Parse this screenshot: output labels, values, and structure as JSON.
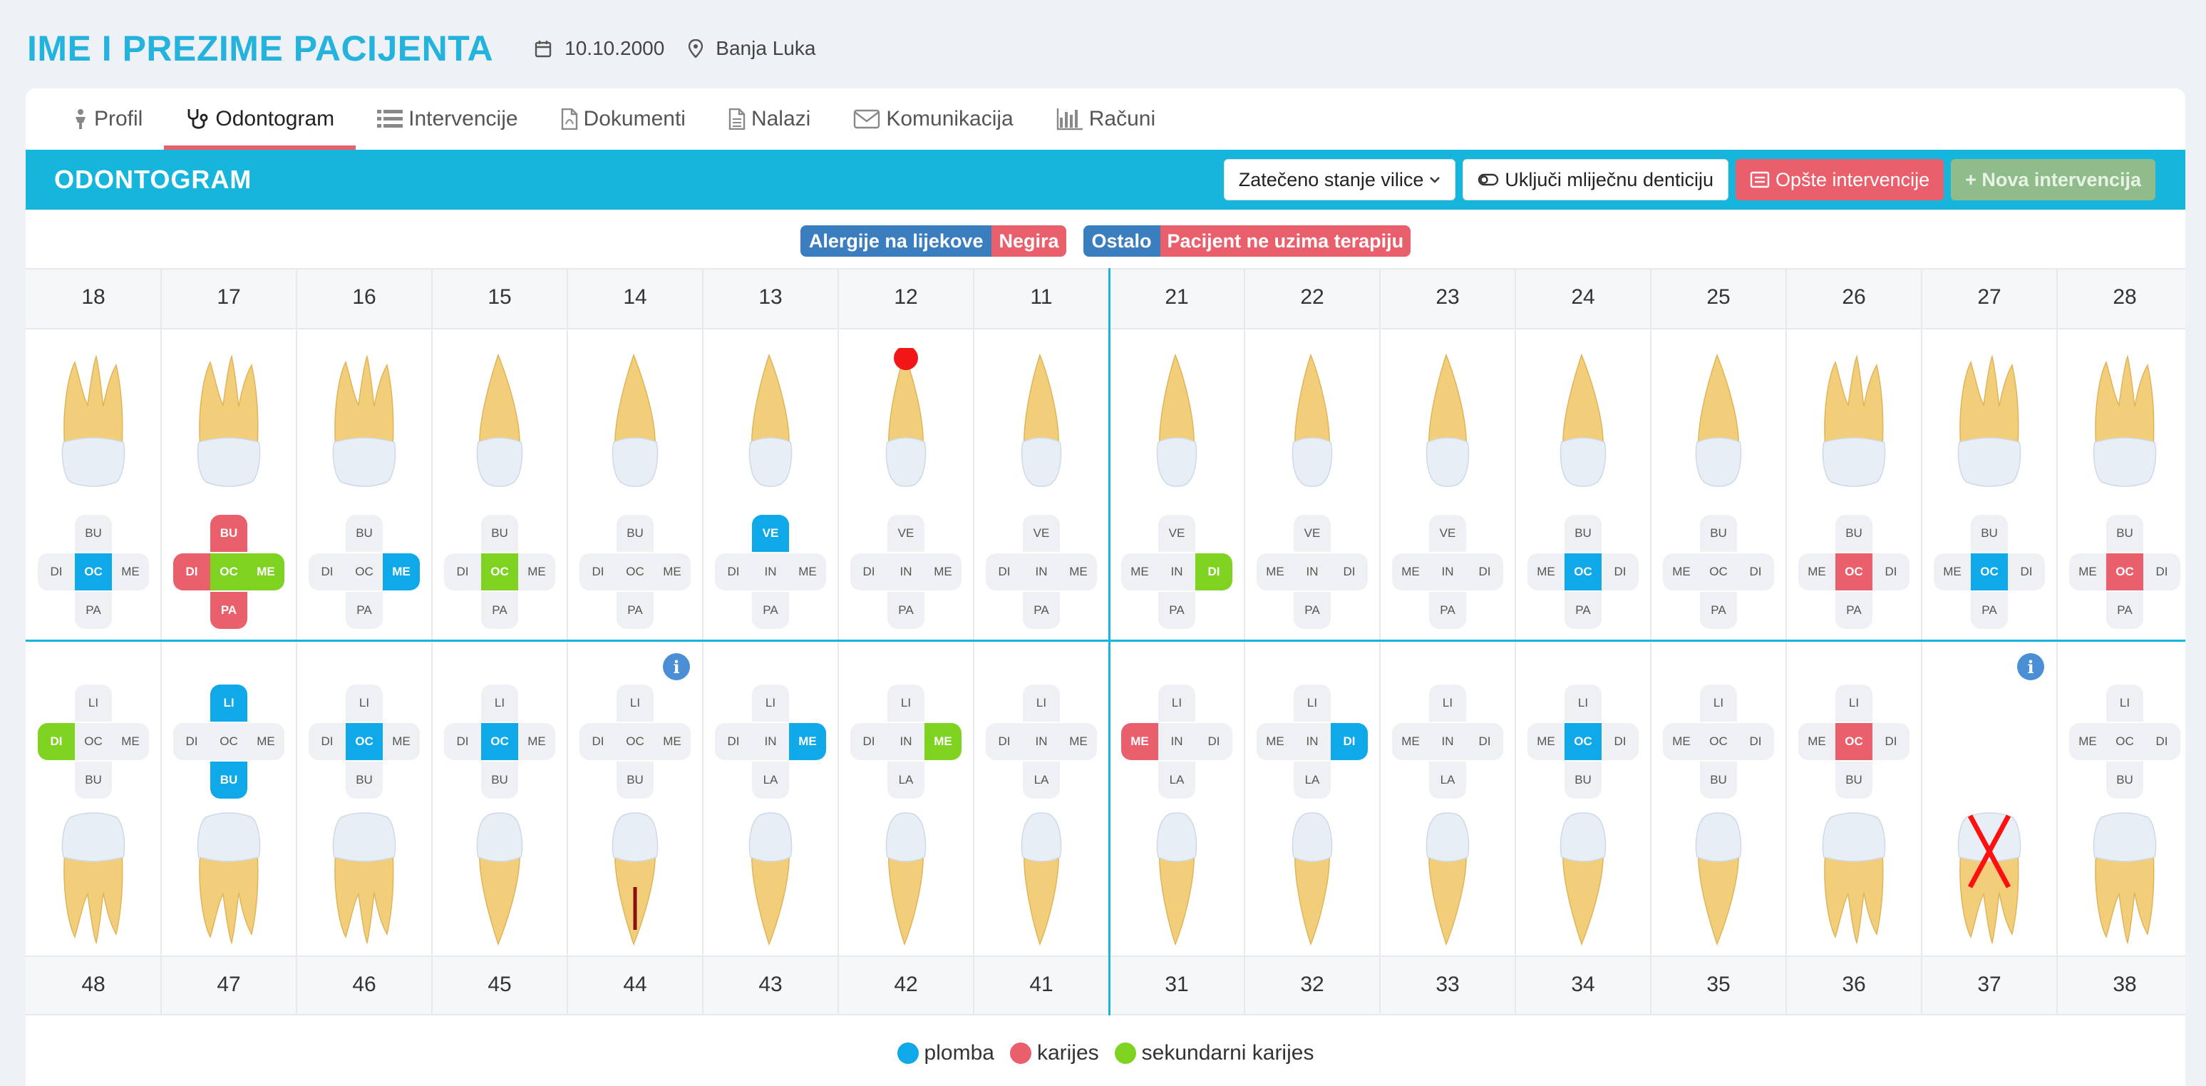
{
  "patient": {
    "name": "IME I PREZIME PACIJENTA",
    "dob": "10.10.2000",
    "city": "Banja Luka"
  },
  "tabs": [
    {
      "label": "Profil",
      "icon": "person-icon"
    },
    {
      "label": "Odontogram",
      "icon": "stethoscope-icon",
      "active": true
    },
    {
      "label": "Intervencije",
      "icon": "list-icon"
    },
    {
      "label": "Dokumenti",
      "icon": "pdf-file-icon"
    },
    {
      "label": "Nalazi",
      "icon": "document-icon"
    },
    {
      "label": "Komunikacija",
      "icon": "envelope-icon"
    },
    {
      "label": "Računi",
      "icon": "bar-chart-icon"
    }
  ],
  "toolbar": {
    "title": "ODONTOGRAM",
    "state_select": "Zatečeno stanje vilice",
    "milk_toggle": "Uključi mliječnu denticiju",
    "general_btn": "Opšte intervencije",
    "new_btn": "+ Nova intervencija"
  },
  "badges": {
    "allergy_label": "Alergije na lijekove",
    "allergy_value": "Negira",
    "other_label": "Ostalo",
    "other_value": "Pacijent ne uzima terapiju"
  },
  "colors": {
    "accent": "#16b6dc",
    "plomba": "#0fa8e8",
    "karijes": "#e9606c",
    "sekundarni": "#7ed321"
  },
  "upper": [
    {
      "num": "18",
      "kind": "molar",
      "s": [
        "BU",
        "DI",
        "OC",
        "ME",
        "PA"
      ],
      "c": [
        "",
        "",
        "blue",
        "",
        ""
      ]
    },
    {
      "num": "17",
      "kind": "molar",
      "s": [
        "BU",
        "DI",
        "OC",
        "ME",
        "PA"
      ],
      "c": [
        "red",
        "red",
        "green",
        "green",
        "red"
      ]
    },
    {
      "num": "16",
      "kind": "molar",
      "s": [
        "BU",
        "DI",
        "OC",
        "ME",
        "PA"
      ],
      "c": [
        "",
        "",
        "",
        "blue",
        ""
      ]
    },
    {
      "num": "15",
      "kind": "premolar",
      "s": [
        "BU",
        "DI",
        "OC",
        "ME",
        "PA"
      ],
      "c": [
        "",
        "",
        "green",
        "",
        ""
      ]
    },
    {
      "num": "14",
      "kind": "premolar",
      "s": [
        "BU",
        "DI",
        "OC",
        "ME",
        "PA"
      ],
      "c": [
        "",
        "",
        "",
        "",
        ""
      ]
    },
    {
      "num": "13",
      "kind": "canine",
      "s": [
        "VE",
        "DI",
        "IN",
        "ME",
        "PA"
      ],
      "c": [
        "blue",
        "",
        "",
        "",
        ""
      ]
    },
    {
      "num": "12",
      "kind": "incisor",
      "s": [
        "VE",
        "DI",
        "IN",
        "ME",
        "PA"
      ],
      "c": [
        "",
        "",
        "",
        "",
        ""
      ],
      "marker": true
    },
    {
      "num": "11",
      "kind": "incisor",
      "s": [
        "VE",
        "DI",
        "IN",
        "ME",
        "PA"
      ],
      "c": [
        "",
        "",
        "",
        "",
        ""
      ]
    },
    {
      "num": "21",
      "kind": "incisor",
      "s": [
        "VE",
        "ME",
        "IN",
        "DI",
        "PA"
      ],
      "c": [
        "",
        "",
        "",
        "green",
        ""
      ]
    },
    {
      "num": "22",
      "kind": "incisor",
      "s": [
        "VE",
        "ME",
        "IN",
        "DI",
        "PA"
      ],
      "c": [
        "",
        "",
        "",
        "",
        ""
      ]
    },
    {
      "num": "23",
      "kind": "canine",
      "s": [
        "VE",
        "ME",
        "IN",
        "DI",
        "PA"
      ],
      "c": [
        "",
        "",
        "",
        "",
        ""
      ]
    },
    {
      "num": "24",
      "kind": "premolar",
      "s": [
        "BU",
        "ME",
        "OC",
        "DI",
        "PA"
      ],
      "c": [
        "",
        "",
        "blue",
        "",
        ""
      ]
    },
    {
      "num": "25",
      "kind": "premolar",
      "s": [
        "BU",
        "ME",
        "OC",
        "DI",
        "PA"
      ],
      "c": [
        "",
        "",
        "",
        "",
        ""
      ]
    },
    {
      "num": "26",
      "kind": "molar",
      "s": [
        "BU",
        "ME",
        "OC",
        "DI",
        "PA"
      ],
      "c": [
        "",
        "",
        "red",
        "",
        ""
      ]
    },
    {
      "num": "27",
      "kind": "molar",
      "s": [
        "BU",
        "ME",
        "OC",
        "DI",
        "PA"
      ],
      "c": [
        "",
        "",
        "blue",
        "",
        ""
      ]
    },
    {
      "num": "28",
      "kind": "molar",
      "s": [
        "BU",
        "ME",
        "OC",
        "DI",
        "PA"
      ],
      "c": [
        "",
        "",
        "red",
        "",
        ""
      ]
    }
  ],
  "lower": [
    {
      "num": "48",
      "kind": "molar",
      "s": [
        "LI",
        "DI",
        "OC",
        "ME",
        "BU"
      ],
      "c": [
        "",
        "green",
        "",
        "",
        ""
      ]
    },
    {
      "num": "47",
      "kind": "molar",
      "s": [
        "LI",
        "DI",
        "OC",
        "ME",
        "BU"
      ],
      "c": [
        "blue",
        "",
        "",
        "",
        "blue"
      ]
    },
    {
      "num": "46",
      "kind": "molar",
      "s": [
        "LI",
        "DI",
        "OC",
        "ME",
        "BU"
      ],
      "c": [
        "",
        "",
        "blue",
        "",
        ""
      ]
    },
    {
      "num": "45",
      "kind": "premolar",
      "s": [
        "LI",
        "DI",
        "OC",
        "ME",
        "BU"
      ],
      "c": [
        "",
        "",
        "blue",
        "",
        ""
      ]
    },
    {
      "num": "44",
      "kind": "premolar",
      "s": [
        "LI",
        "DI",
        "OC",
        "ME",
        "BU"
      ],
      "c": [
        "",
        "",
        "",
        "",
        ""
      ],
      "info": true,
      "rootcanal": true
    },
    {
      "num": "43",
      "kind": "canine",
      "s": [
        "LI",
        "DI",
        "IN",
        "ME",
        "LA"
      ],
      "c": [
        "",
        "",
        "",
        "blue",
        ""
      ]
    },
    {
      "num": "42",
      "kind": "incisor",
      "s": [
        "LI",
        "DI",
        "IN",
        "ME",
        "LA"
      ],
      "c": [
        "",
        "",
        "",
        "green",
        ""
      ]
    },
    {
      "num": "41",
      "kind": "incisor",
      "s": [
        "LI",
        "DI",
        "IN",
        "ME",
        "LA"
      ],
      "c": [
        "",
        "",
        "",
        "",
        ""
      ]
    },
    {
      "num": "31",
      "kind": "incisor",
      "s": [
        "LI",
        "ME",
        "IN",
        "DI",
        "LA"
      ],
      "c": [
        "",
        "red",
        "",
        "",
        ""
      ]
    },
    {
      "num": "32",
      "kind": "incisor",
      "s": [
        "LI",
        "ME",
        "IN",
        "DI",
        "LA"
      ],
      "c": [
        "",
        "",
        "",
        "blue",
        ""
      ]
    },
    {
      "num": "33",
      "kind": "canine",
      "s": [
        "LI",
        "ME",
        "IN",
        "DI",
        "LA"
      ],
      "c": [
        "",
        "",
        "",
        "",
        ""
      ]
    },
    {
      "num": "34",
      "kind": "premolar",
      "s": [
        "LI",
        "ME",
        "OC",
        "DI",
        "BU"
      ],
      "c": [
        "",
        "",
        "blue",
        "",
        ""
      ]
    },
    {
      "num": "35",
      "kind": "premolar",
      "s": [
        "LI",
        "ME",
        "OC",
        "DI",
        "BU"
      ],
      "c": [
        "",
        "",
        "",
        "",
        ""
      ]
    },
    {
      "num": "36",
      "kind": "molar",
      "s": [
        "LI",
        "ME",
        "OC",
        "DI",
        "BU"
      ],
      "c": [
        "",
        "",
        "red",
        "",
        ""
      ]
    },
    {
      "num": "37",
      "kind": "molar",
      "s": [],
      "c": [],
      "info": true,
      "missing": true
    },
    {
      "num": "38",
      "kind": "molar",
      "s": [
        "LI",
        "ME",
        "OC",
        "DI",
        "BU"
      ],
      "c": [
        "",
        "",
        "",
        "",
        ""
      ]
    }
  ],
  "legend": [
    {
      "label": "plomba",
      "color": "#0fa8e8"
    },
    {
      "label": "karijes",
      "color": "#e9606c"
    },
    {
      "label": "sekundarni karijes",
      "color": "#7ed321"
    }
  ],
  "info_glyph": "i"
}
